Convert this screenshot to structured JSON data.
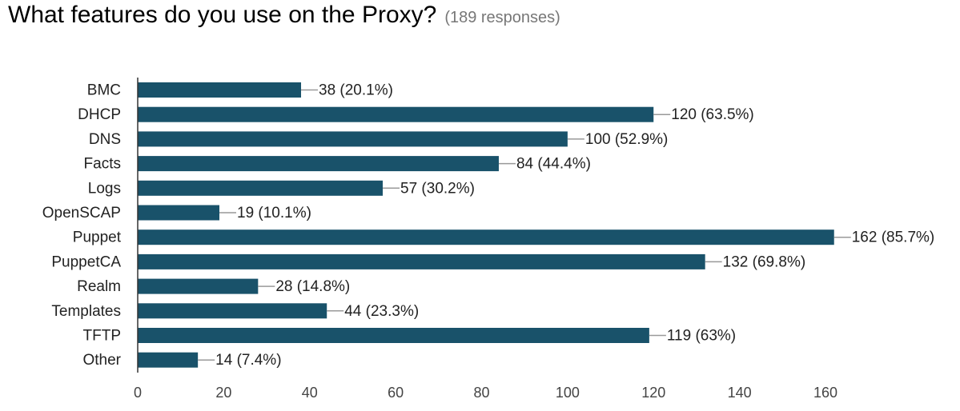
{
  "chart_data": {
    "type": "bar",
    "orientation": "horizontal",
    "title": "What features do you use on the Proxy?",
    "subtitle": "(189 responses)",
    "categories": [
      "BMC",
      "DHCP",
      "DNS",
      "Facts",
      "Logs",
      "OpenSCAP",
      "Puppet",
      "PuppetCA",
      "Realm",
      "Templates",
      "TFTP",
      "Other"
    ],
    "values": [
      38,
      120,
      100,
      84,
      57,
      19,
      162,
      132,
      28,
      44,
      119,
      14
    ],
    "data_labels": [
      "38 (20.1%)",
      "120 (63.5%)",
      "100 (52.9%)",
      "84 (44.4%)",
      "57 (30.2%)",
      "19 (10.1%)",
      "162 (85.7%)",
      "132 (69.8%)",
      "28 (14.8%)",
      "44 (23.3%)",
      "119 (63%)",
      "14 (7.4%)"
    ],
    "xticks": [
      "0",
      "20",
      "40",
      "60",
      "80",
      "100",
      "120",
      "140",
      "160"
    ],
    "xlim": [
      0,
      160
    ],
    "xlabel": "",
    "ylabel": "",
    "grid": false,
    "bar_color": "#19526a"
  }
}
